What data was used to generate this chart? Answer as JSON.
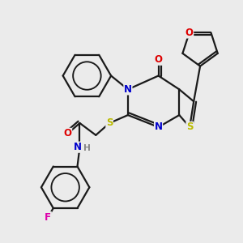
{
  "bg_color": "#ebebeb",
  "atom_colors": {
    "C": "#1a1a1a",
    "N": "#0000cc",
    "O": "#dd0000",
    "S": "#bbbb00",
    "F": "#dd00aa",
    "H": "#888888"
  },
  "bond_color": "#1a1a1a",
  "bond_lw": 1.6,
  "fontsize": 8.5
}
